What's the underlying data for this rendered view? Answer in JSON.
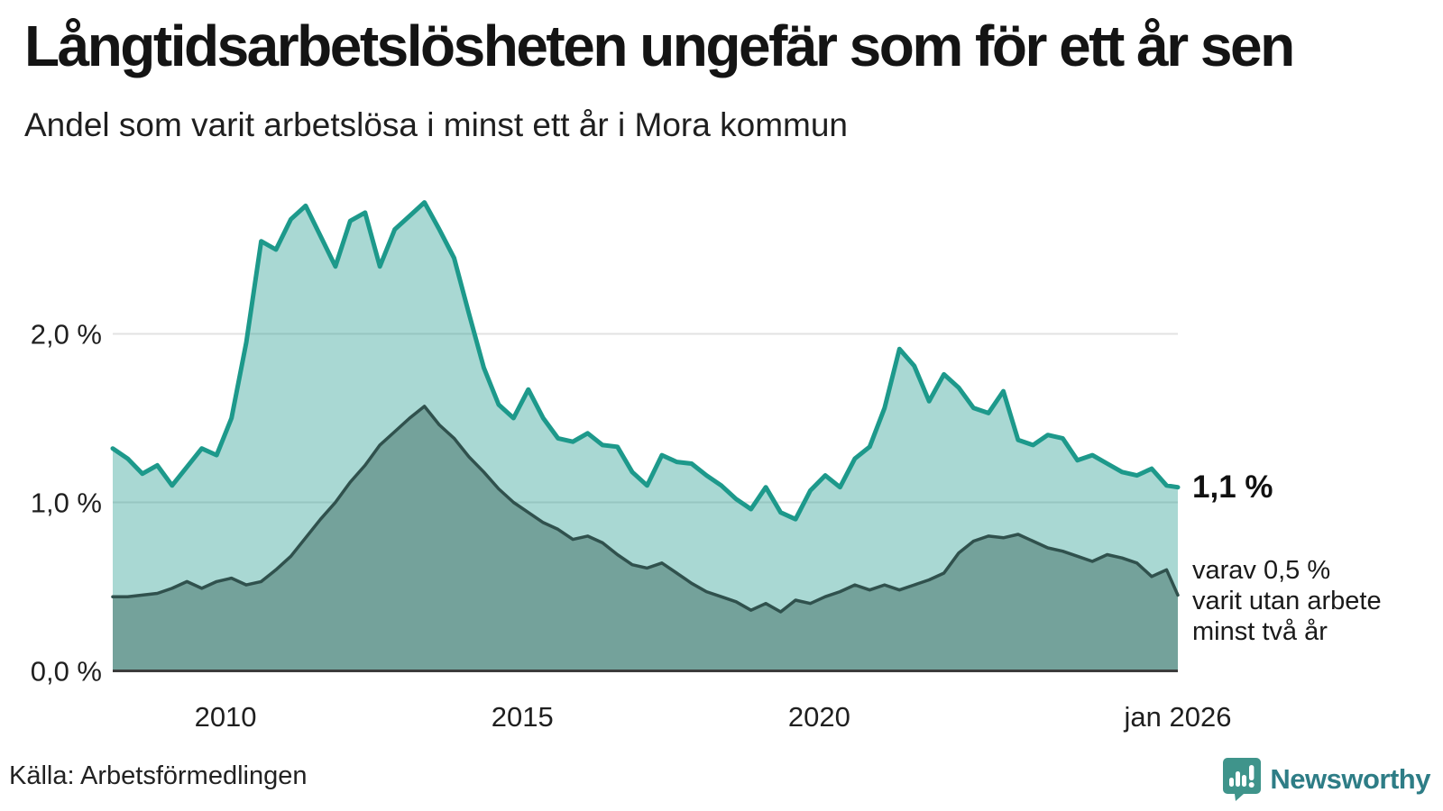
{
  "header": {
    "title": "Långtidsarbetslösheten ungefär som för ett år sen",
    "subtitle": "Andel som varit arbetslösa i minst ett år i Mora kommun"
  },
  "footer": {
    "source": "Källa: Arbetsförmedlingen",
    "logo_text": "Newsworthy",
    "logo_color": "#3f948b",
    "logo_text_color": "#2e7d86"
  },
  "chart_data": {
    "type": "area",
    "title": "Långtidsarbetslösheten ungefär som för ett år sen",
    "subtitle": "Andel som varit arbetslösa i minst ett år i Mora kommun",
    "unit": "%",
    "xlim": [
      2008.1,
      2026.04
    ],
    "ylim": [
      0,
      2.9
    ],
    "grid": "horizontal",
    "legend_position": "none",
    "x": [
      2008.1,
      2008.35,
      2008.6,
      2008.85,
      2009.1,
      2009.35,
      2009.6,
      2009.85,
      2010.1,
      2010.35,
      2010.6,
      2010.85,
      2011.1,
      2011.35,
      2011.6,
      2011.85,
      2012.1,
      2012.35,
      2012.6,
      2012.85,
      2013.1,
      2013.35,
      2013.6,
      2013.85,
      2014.1,
      2014.35,
      2014.6,
      2014.85,
      2015.1,
      2015.35,
      2015.6,
      2015.85,
      2016.1,
      2016.35,
      2016.6,
      2016.85,
      2017.1,
      2017.35,
      2017.6,
      2017.85,
      2018.1,
      2018.35,
      2018.6,
      2018.85,
      2019.1,
      2019.35,
      2019.6,
      2019.85,
      2020.1,
      2020.35,
      2020.6,
      2020.85,
      2021.1,
      2021.35,
      2021.6,
      2021.85,
      2022.1,
      2022.35,
      2022.6,
      2022.85,
      2023.1,
      2023.35,
      2023.6,
      2023.85,
      2024.1,
      2024.35,
      2024.6,
      2024.85,
      2025.1,
      2025.35,
      2025.6,
      2025.85,
      2026.04
    ],
    "series": [
      {
        "name": "Andel arbetslösa minst ett år",
        "line_color": "#1d998b",
        "fill_color": "rgba(30,153,139,0.38)",
        "line_width": 5,
        "values": [
          1.32,
          1.26,
          1.17,
          1.22,
          1.1,
          1.21,
          1.32,
          1.28,
          1.5,
          1.95,
          2.55,
          2.5,
          2.68,
          2.76,
          2.58,
          2.4,
          2.67,
          2.72,
          2.4,
          2.62,
          2.7,
          2.78,
          2.62,
          2.45,
          2.12,
          1.8,
          1.58,
          1.5,
          1.67,
          1.5,
          1.38,
          1.36,
          1.41,
          1.34,
          1.33,
          1.18,
          1.1,
          1.28,
          1.24,
          1.23,
          1.16,
          1.1,
          1.02,
          0.96,
          1.09,
          0.94,
          0.9,
          1.07,
          1.16,
          1.09,
          1.26,
          1.33,
          1.56,
          1.91,
          1.81,
          1.6,
          1.76,
          1.68,
          1.56,
          1.53,
          1.66,
          1.37,
          1.34,
          1.4,
          1.38,
          1.25,
          1.28,
          1.23,
          1.18,
          1.16,
          1.2,
          1.1,
          1.09
        ]
      },
      {
        "name": "varav utan arbete minst två år",
        "line_color": "#30514d",
        "fill_color": "#74a29b",
        "line_width": 3.5,
        "values": [
          0.44,
          0.44,
          0.45,
          0.46,
          0.49,
          0.53,
          0.49,
          0.53,
          0.55,
          0.51,
          0.53,
          0.6,
          0.68,
          0.79,
          0.9,
          1.0,
          1.12,
          1.22,
          1.34,
          1.42,
          1.5,
          1.57,
          1.46,
          1.38,
          1.27,
          1.18,
          1.08,
          1.0,
          0.94,
          0.88,
          0.84,
          0.78,
          0.8,
          0.76,
          0.69,
          0.63,
          0.61,
          0.64,
          0.58,
          0.52,
          0.47,
          0.44,
          0.41,
          0.36,
          0.4,
          0.35,
          0.42,
          0.4,
          0.44,
          0.47,
          0.51,
          0.48,
          0.51,
          0.48,
          0.51,
          0.54,
          0.58,
          0.7,
          0.77,
          0.8,
          0.79,
          0.81,
          0.77,
          0.73,
          0.71,
          0.68,
          0.65,
          0.69,
          0.67,
          0.64,
          0.56,
          0.6,
          0.45
        ]
      }
    ],
    "x_ticks": [
      {
        "label": "2010",
        "year": 2010
      },
      {
        "label": "2015",
        "year": 2015
      },
      {
        "label": "2020",
        "year": 2020
      },
      {
        "label": "jan 2026",
        "year": 2026.04
      }
    ],
    "y_ticks": [
      {
        "label": "0,0 %",
        "value": 0
      },
      {
        "label": "1,0 %",
        "value": 1
      },
      {
        "label": "2,0 %",
        "value": 2
      }
    ],
    "grid_color": "#e2e2e2",
    "axis_color": "#3c3c3c",
    "annotations": {
      "end_total": "1,1 %",
      "end_sub": [
        "varav 0,5 %",
        "varit utan arbete",
        "minst två år"
      ]
    }
  }
}
